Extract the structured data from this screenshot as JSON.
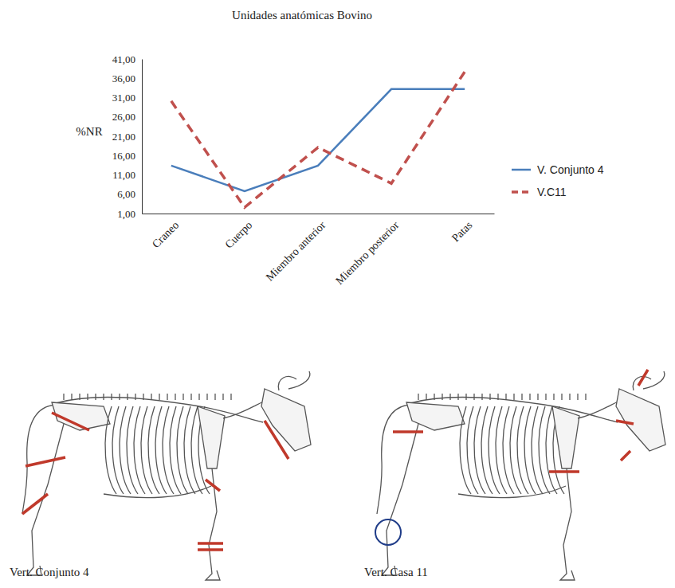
{
  "chart_data": {
    "type": "line",
    "title": "Unidades anatómicas Bovino",
    "ylabel": "%NR",
    "categories": [
      "Craneo",
      "Cuerpo",
      "Miembro anterior",
      "Miembro posterior",
      "Patas"
    ],
    "series": [
      {
        "name": "V. Conjunto 4",
        "color": "#4a7ebb",
        "line_style": "solid",
        "values": [
          13.4,
          6.8,
          13.4,
          33.2,
          33.2
        ]
      },
      {
        "name": "V.C11",
        "color": "#c0504d",
        "line_style": "dashed",
        "values": [
          30.1,
          2.6,
          18.1,
          8.8,
          37.7
        ]
      }
    ],
    "ylim": [
      1,
      41
    ],
    "yticks": [
      {
        "value": 1,
        "label": "1,00"
      },
      {
        "value": 6,
        "label": "6,00"
      },
      {
        "value": 11,
        "label": "11,00"
      },
      {
        "value": 16,
        "label": "16,00"
      },
      {
        "value": 21,
        "label": "21,00"
      },
      {
        "value": 26,
        "label": "26,00"
      },
      {
        "value": 31,
        "label": "31,00"
      },
      {
        "value": 36,
        "label": "36,00"
      },
      {
        "value": 41,
        "label": "41,00"
      }
    ],
    "grid": false,
    "legend": "right"
  },
  "panels": [
    {
      "caption": "Vert. Conjunto 4"
    },
    {
      "caption": "Vert. Casa 11"
    }
  ]
}
